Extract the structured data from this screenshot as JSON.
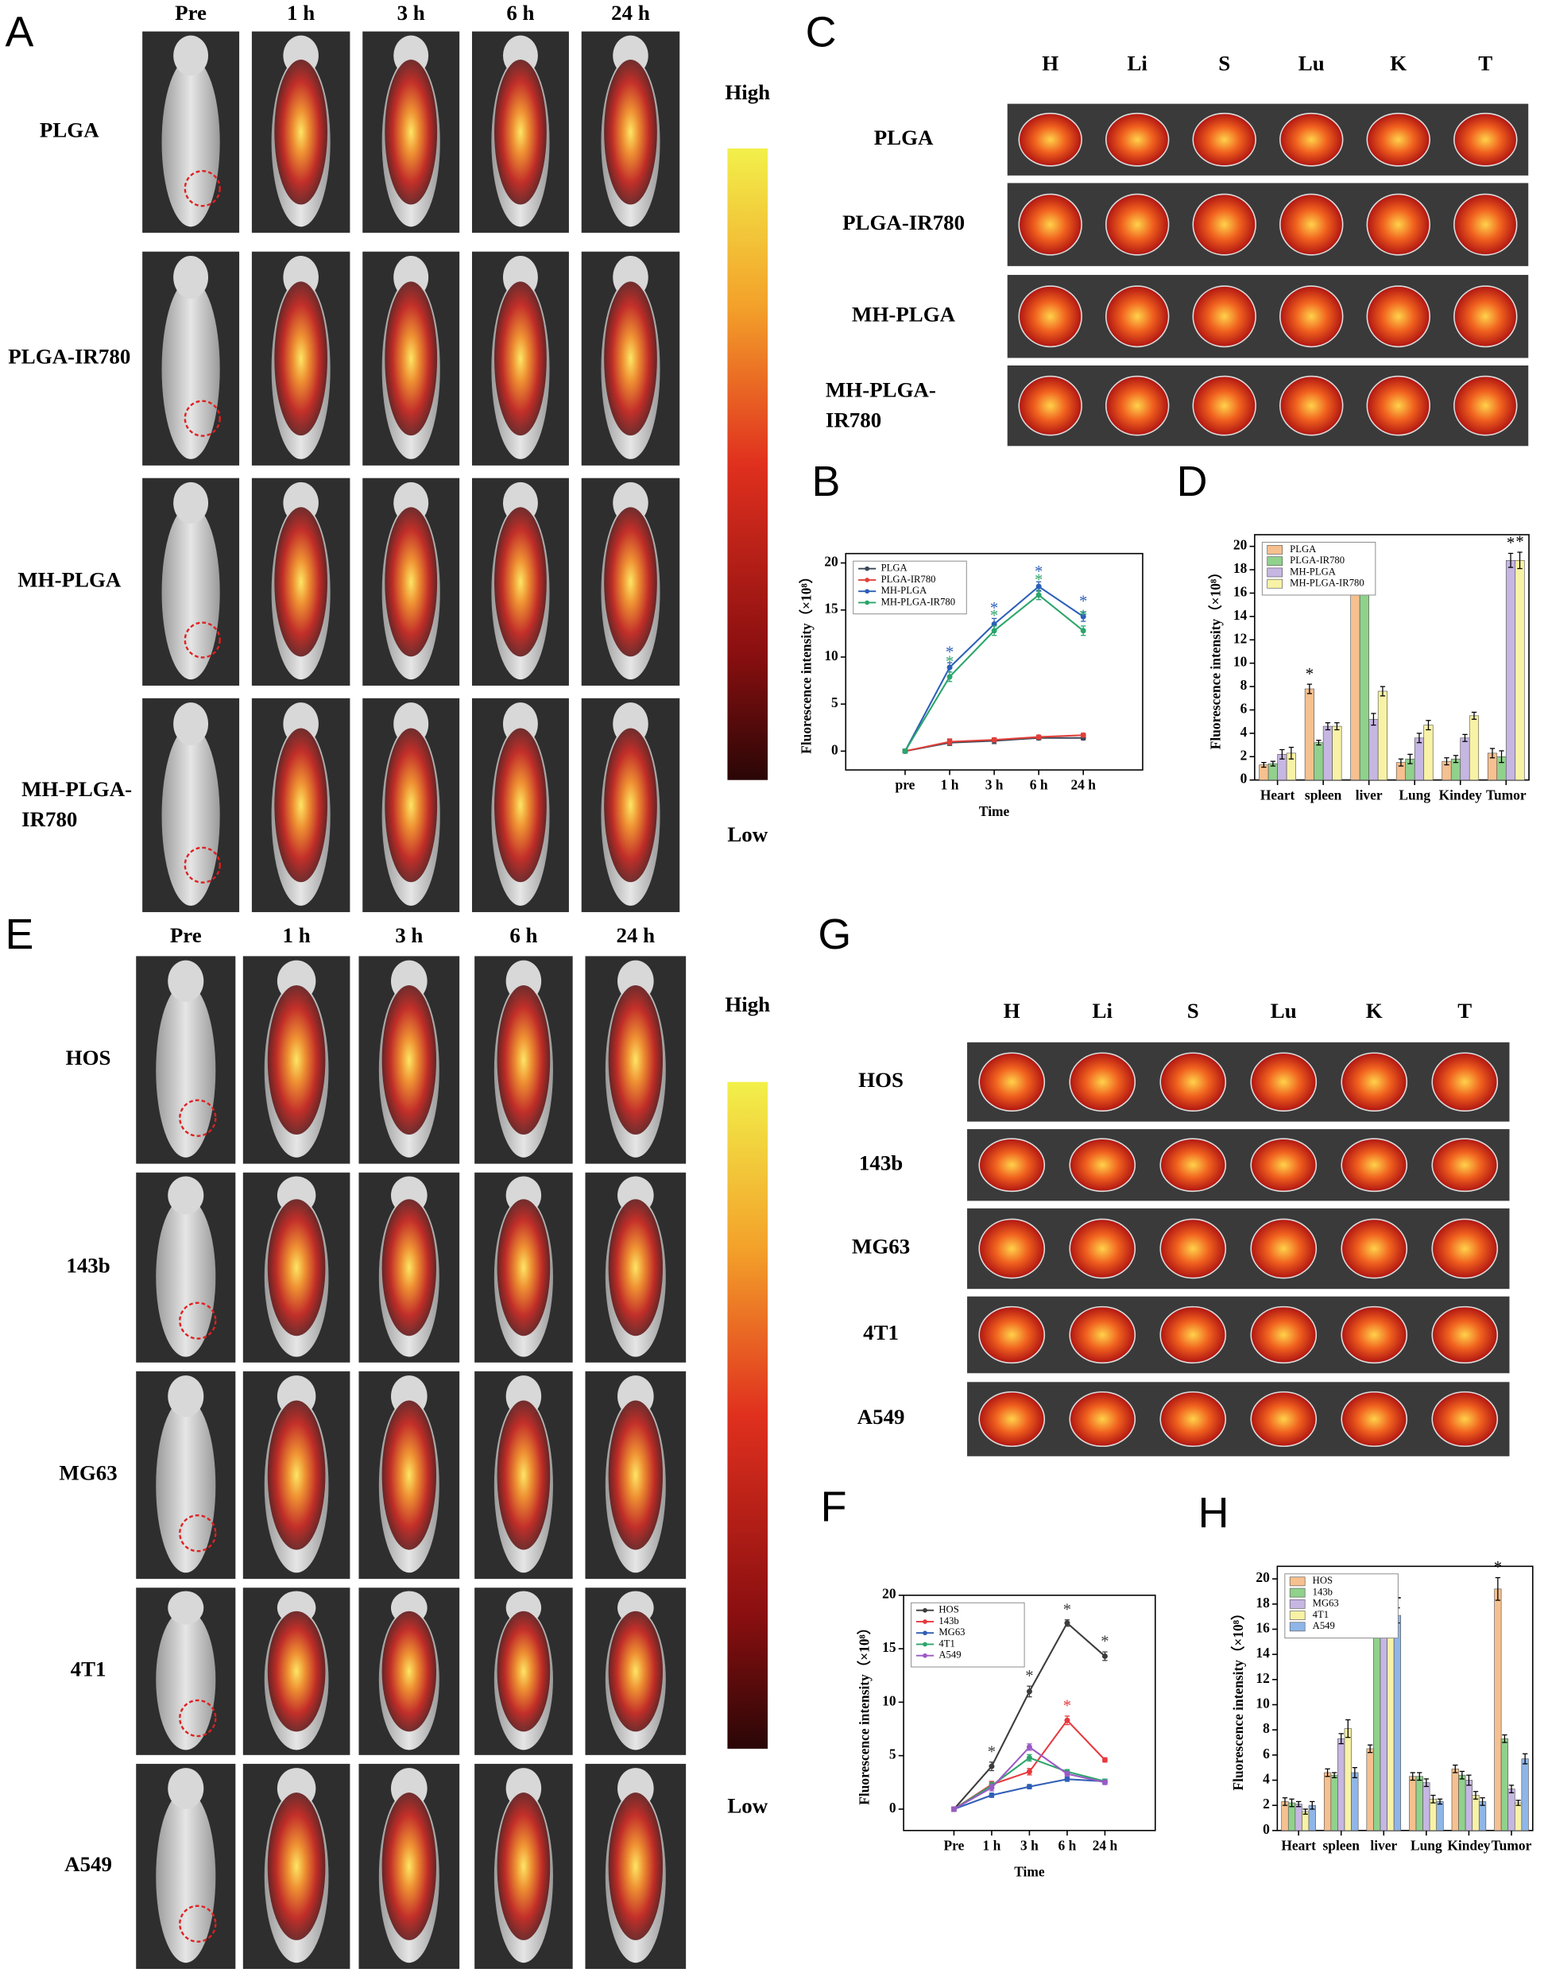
{
  "panels": [
    {
      "label": "A",
      "columns": [
        "Pre",
        "1 h",
        "3 h",
        "6 h",
        "24 h"
      ],
      "rows": [
        "PLGA",
        "PLGA-IR780",
        "MH-PLGA",
        [
          "MH-PLGA-",
          "IR780"
        ]
      ],
      "high": "High",
      "low": "Low"
    },
    {
      "label": "C",
      "columns": [
        "H",
        "Li",
        "S",
        "Lu",
        "K",
        "T"
      ],
      "rows": [
        "PLGA",
        "PLGA-IR780",
        "MH-PLGA",
        [
          "MH-PLGA-",
          "IR780"
        ]
      ]
    },
    {
      "label": "E",
      "columns": [
        "Pre",
        "1 h",
        "3 h",
        "6 h",
        "24 h"
      ],
      "rows": [
        "HOS",
        "143b",
        "MG63",
        "4T1",
        "A549"
      ],
      "high": "High",
      "low": "Low"
    },
    {
      "label": "G",
      "columns": [
        "H",
        "Li",
        "S",
        "Lu",
        "K",
        "T"
      ],
      "rows": [
        "HOS",
        "143b",
        "MG63",
        "4T1",
        "A549"
      ]
    }
  ],
  "chart_data": [
    {
      "type": "line",
      "label": "B",
      "xlabel": "Time",
      "ylabel": "Fluorescence intensity（×10⁸）",
      "categories": [
        "pre",
        "1 h",
        "3 h",
        "6 h",
        "24 h"
      ],
      "ylim": [
        -2,
        21
      ],
      "yticks": [
        0,
        5,
        10,
        15,
        20
      ],
      "grid": false,
      "legend": "upper left",
      "series": [
        {
          "name": "PLGA",
          "color": "#3a4656",
          "values": [
            0,
            0.9,
            1.1,
            1.4,
            1.4
          ],
          "errors": [
            0.2,
            0.3,
            0.3,
            0.2,
            0.2
          ]
        },
        {
          "name": "PLGA-IR780",
          "color": "#e0403a",
          "values": [
            0,
            1.0,
            1.2,
            1.5,
            1.7
          ],
          "errors": [
            0.2,
            0.3,
            0.2,
            0.2,
            0.2
          ]
        },
        {
          "name": "MH-PLGA",
          "color": "#2c5fb8",
          "values": [
            0,
            8.9,
            13.5,
            17.5,
            14.3
          ],
          "errors": [
            0.2,
            0.5,
            0.6,
            0.5,
            0.5
          ],
          "annotations": [
            null,
            "*",
            "*",
            "*",
            "*"
          ]
        },
        {
          "name": "MH-PLGA-IR780",
          "color": "#2aa56a",
          "values": [
            0,
            7.9,
            12.8,
            16.6,
            12.8
          ],
          "errors": [
            0.2,
            0.5,
            0.5,
            0.5,
            0.5
          ],
          "annotations": [
            null,
            "*",
            "*",
            "*",
            "*"
          ]
        }
      ]
    },
    {
      "type": "bar",
      "label": "D",
      "ylabel": "Fluorescence intensity（×10⁸）",
      "categories": [
        "Heart",
        "spleen",
        "liver",
        "Lung",
        "Kindey",
        "Tumor"
      ],
      "ylim": [
        0,
        21
      ],
      "yticks": [
        0,
        2,
        4,
        6,
        8,
        10,
        12,
        14,
        16,
        18,
        20
      ],
      "grid": false,
      "legend": "upper left",
      "series": [
        {
          "name": "PLGA",
          "color": "#f6c08f",
          "values": [
            1.3,
            7.8,
            17.6,
            1.5,
            1.6,
            2.3
          ],
          "errors": [
            0.2,
            0.4,
            0.5,
            0.3,
            0.3,
            0.4
          ],
          "annotations": [
            null,
            "*",
            "*",
            null,
            null,
            null
          ]
        },
        {
          "name": "PLGA-IR780",
          "color": "#90d18c",
          "values": [
            1.4,
            3.2,
            17.5,
            1.8,
            1.8,
            2.0
          ],
          "errors": [
            0.2,
            0.2,
            0.5,
            0.4,
            0.3,
            0.5
          ],
          "annotations": [
            null,
            null,
            "*",
            null,
            null,
            null
          ]
        },
        {
          "name": "MH-PLGA",
          "color": "#c6b6e2",
          "values": [
            2.2,
            4.6,
            5.2,
            3.6,
            3.6,
            18.8
          ],
          "errors": [
            0.4,
            0.3,
            0.5,
            0.4,
            0.3,
            0.6
          ],
          "annotations": [
            null,
            null,
            null,
            null,
            null,
            "*"
          ]
        },
        {
          "name": "MH-PLGA-IR780",
          "color": "#f8f2a6",
          "values": [
            2.3,
            4.6,
            7.6,
            4.7,
            5.5,
            18.8
          ],
          "errors": [
            0.5,
            0.3,
            0.4,
            0.4,
            0.3,
            0.7
          ],
          "annotations": [
            null,
            null,
            null,
            null,
            null,
            "*"
          ]
        }
      ]
    },
    {
      "type": "line",
      "label": "F",
      "xlabel": "Time",
      "ylabel": "Fluorescence intensity（×10⁸）",
      "categories": [
        "Pre",
        "1 h",
        "3 h",
        "6 h",
        "24 h"
      ],
      "ylim": [
        -2,
        20
      ],
      "yticks": [
        0,
        5,
        10,
        15,
        20
      ],
      "grid": false,
      "legend": "upper left",
      "series": [
        {
          "name": "HOS",
          "color": "#3c3c3c",
          "values": [
            0,
            4.0,
            11.0,
            17.4,
            14.3
          ],
          "errors": [
            0.2,
            0.4,
            0.5,
            0.3,
            0.4
          ],
          "annotations": [
            null,
            "*",
            "*",
            "*",
            "*"
          ]
        },
        {
          "name": "143b",
          "color": "#e8383d",
          "values": [
            0,
            2.3,
            3.5,
            8.3,
            4.6
          ],
          "errors": [
            0.2,
            0.3,
            0.3,
            0.4,
            0.2
          ],
          "annotations": [
            null,
            null,
            null,
            "*",
            null
          ]
        },
        {
          "name": "MG63",
          "color": "#2f5eb6",
          "values": [
            0,
            1.3,
            2.1,
            2.8,
            2.6
          ],
          "errors": [
            0.2,
            0.2,
            0.2,
            0.2,
            0.2
          ]
        },
        {
          "name": "4T1",
          "color": "#2ba56b",
          "values": [
            0,
            2.2,
            4.8,
            3.5,
            2.6
          ],
          "errors": [
            0.2,
            0.3,
            0.3,
            0.2,
            0.2
          ]
        },
        {
          "name": "A549",
          "color": "#9b59c6",
          "values": [
            0,
            2.0,
            5.8,
            3.3,
            2.5
          ],
          "errors": [
            0.2,
            0.3,
            0.3,
            0.2,
            0.2
          ]
        }
      ]
    },
    {
      "type": "bar",
      "label": "H",
      "ylabel": "Fluorescence intensity（×10⁸）",
      "categories": [
        "Heart",
        "spleen",
        "liver",
        "Lung",
        "Kindey",
        "Tumor"
      ],
      "ylim": [
        0,
        21
      ],
      "yticks": [
        0,
        2,
        4,
        6,
        8,
        10,
        12,
        14,
        16,
        18,
        20
      ],
      "grid": false,
      "legend": "upper left",
      "group_annotations": [
        null,
        null,
        "*",
        null,
        null,
        null
      ],
      "series": [
        {
          "name": "HOS",
          "color": "#f6c08f",
          "values": [
            2.3,
            4.6,
            6.5,
            4.3,
            4.9,
            19.2
          ],
          "errors": [
            0.3,
            0.3,
            0.3,
            0.3,
            0.3,
            0.9
          ],
          "annotations": [
            null,
            null,
            null,
            null,
            null,
            "*"
          ]
        },
        {
          "name": "143b",
          "color": "#90d18c",
          "values": [
            2.2,
            4.4,
            16.7,
            4.3,
            4.4,
            7.3
          ],
          "errors": [
            0.3,
            0.2,
            0.4,
            0.3,
            0.3,
            0.3
          ]
        },
        {
          "name": "MG63",
          "color": "#c6b6e2",
          "values": [
            2.1,
            7.3,
            17.4,
            3.8,
            4.0,
            3.3
          ],
          "errors": [
            0.2,
            0.4,
            0.4,
            0.3,
            0.4,
            0.3
          ]
        },
        {
          "name": "4T1",
          "color": "#f8f2a6",
          "values": [
            1.5,
            8.1,
            17.3,
            2.5,
            2.8,
            2.2
          ],
          "errors": [
            0.2,
            0.7,
            0.6,
            0.3,
            0.3,
            0.2
          ]
        },
        {
          "name": "A549",
          "color": "#8fb6e8",
          "values": [
            2.0,
            4.6,
            17.1,
            2.3,
            2.3,
            5.7
          ],
          "errors": [
            0.3,
            0.4,
            0.6,
            0.2,
            0.3,
            0.4
          ]
        }
      ]
    }
  ]
}
